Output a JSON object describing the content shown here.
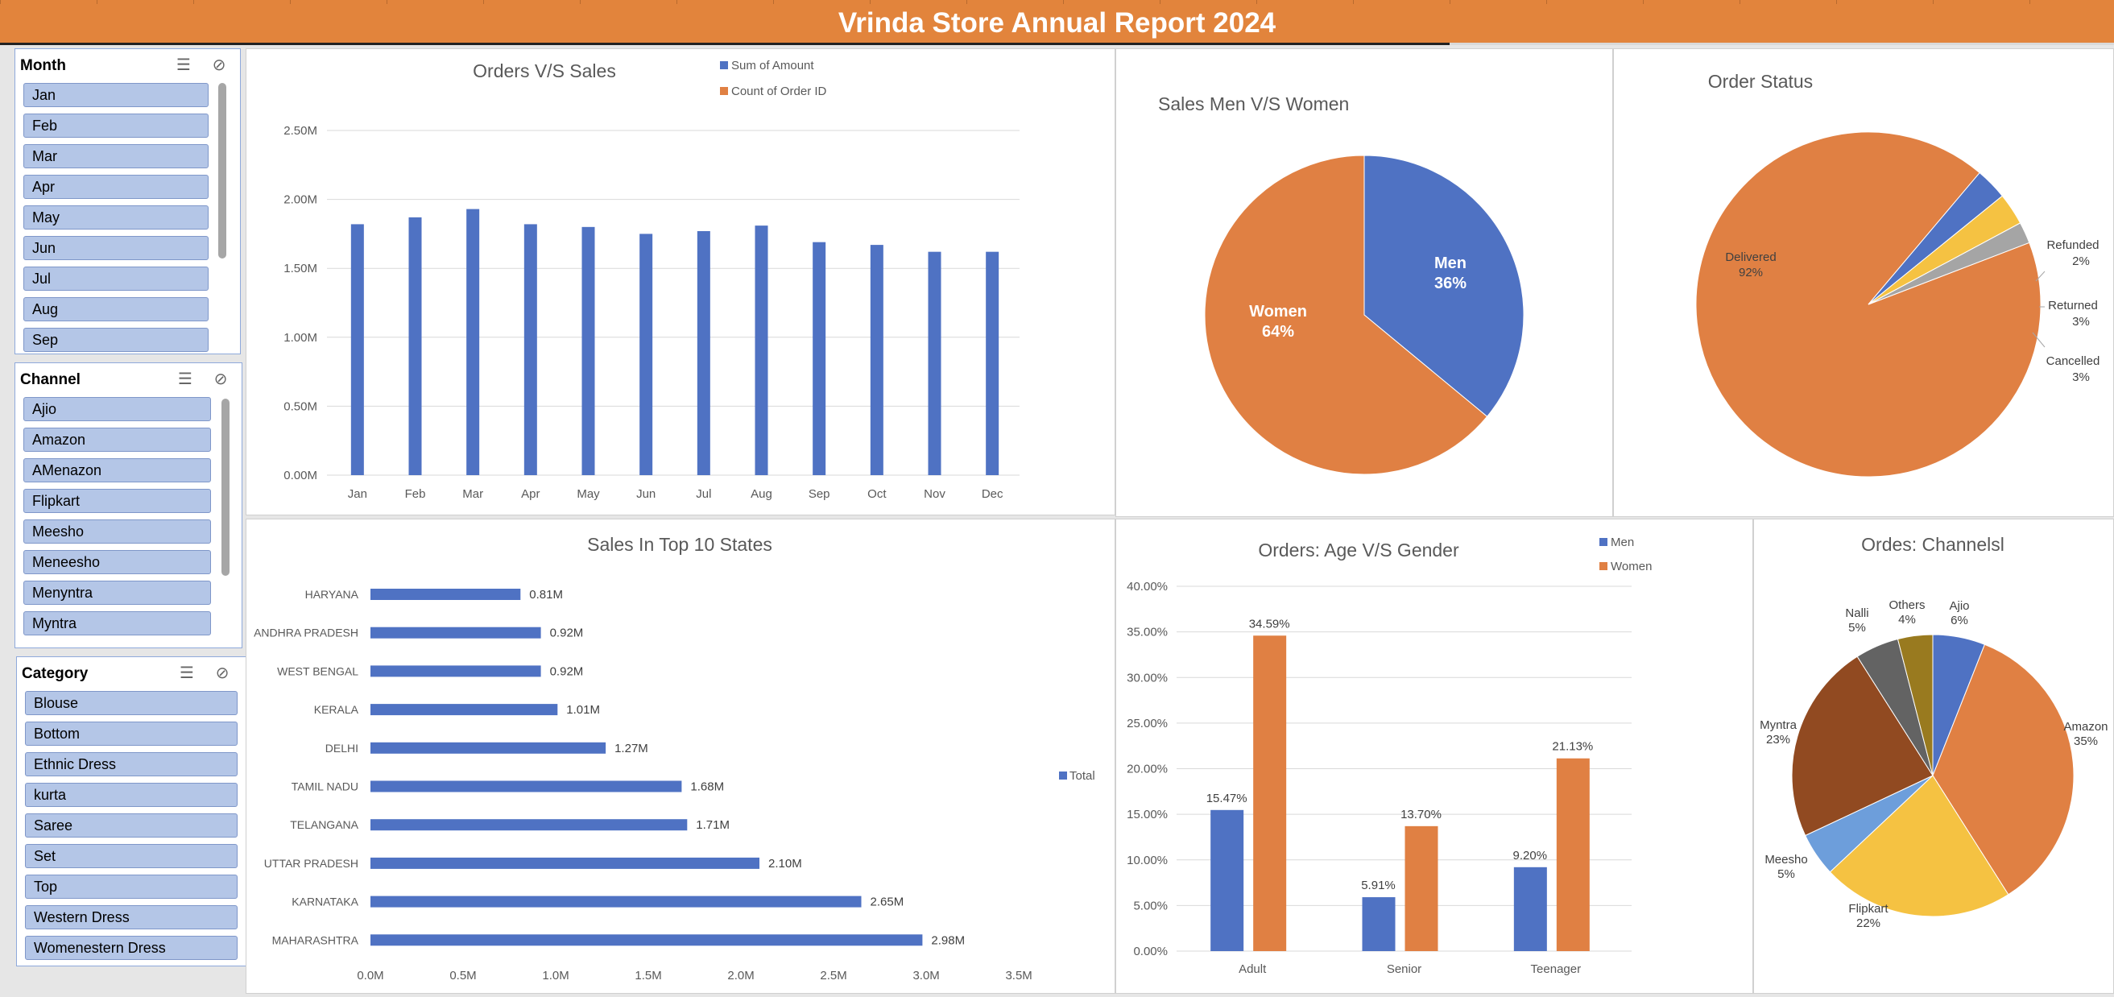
{
  "report": {
    "title": "Vrinda Store Annual Report 2024"
  },
  "slicers": {
    "month": {
      "title": "Month",
      "items": [
        "Jan",
        "Feb",
        "Mar",
        "Apr",
        "May",
        "Jun",
        "Jul",
        "Aug",
        "Sep"
      ]
    },
    "channel": {
      "title": "Channel",
      "items": [
        "Ajio",
        "Amazon",
        "AMenazon",
        "Flipkart",
        "Meesho",
        "Meneesho",
        "Menyntra",
        "Myntra"
      ]
    },
    "category": {
      "title": "Category",
      "items": [
        "Blouse",
        "Bottom",
        "Ethnic Dress",
        "kurta",
        "Saree",
        "Set",
        "Top",
        "Western Dress",
        "Womenestern Dress"
      ]
    }
  },
  "icons": {
    "multiselect": "multi-select-icon",
    "clearfilter": "clear-filter-icon"
  },
  "colors": {
    "blue": "#4f72c3",
    "orange": "#e08043",
    "gray": "#a5a5a5",
    "yellow": "#f5c242",
    "brown": "#914a21",
    "lightblue": "#6d9edb",
    "darkgray": "#636363",
    "olive": "#997a1f"
  },
  "chart_data": [
    {
      "id": "orders-vs-sales",
      "type": "bar",
      "title": "Orders V/S Sales",
      "legend": [
        "Sum of Amount",
        "Count of Order ID"
      ],
      "categories": [
        "Jan",
        "Feb",
        "Mar",
        "Apr",
        "May",
        "Jun",
        "Jul",
        "Aug",
        "Sep",
        "Oct",
        "Nov",
        "Dec"
      ],
      "series": [
        {
          "name": "Sum of Amount",
          "values": [
            1.82,
            1.87,
            1.93,
            1.82,
            1.8,
            1.75,
            1.77,
            1.81,
            1.69,
            1.67,
            1.62,
            1.62
          ]
        }
      ],
      "yticks": [
        "0.00M",
        "0.50M",
        "1.00M",
        "1.50M",
        "2.00M",
        "2.50M"
      ],
      "ylim": [
        0,
        2.5
      ]
    },
    {
      "id": "sales-men-women",
      "type": "pie",
      "title": "Sales Men V/S Women",
      "slices": [
        {
          "label": "Men",
          "pct_label": "36%",
          "value": 36
        },
        {
          "label": "Women",
          "pct_label": "64%",
          "value": 64
        }
      ]
    },
    {
      "id": "order-status",
      "type": "pie",
      "title": "Order Status",
      "slices": [
        {
          "label": "Delivered",
          "pct_label": "92%",
          "value": 92
        },
        {
          "label": "Refunded",
          "pct_label": "2%",
          "value": 2
        },
        {
          "label": "Returned",
          "pct_label": "3%",
          "value": 3
        },
        {
          "label": "Cancelled",
          "pct_label": "3%",
          "value": 3
        }
      ]
    },
    {
      "id": "top-states",
      "type": "bar",
      "orientation": "horizontal",
      "title": "Sales In Top 10 States",
      "legend": [
        "Total"
      ],
      "categories": [
        "HARYANA",
        "ANDHRA PRADESH",
        "WEST BENGAL",
        "KERALA",
        "DELHI",
        "TAMIL NADU",
        "TELANGANA",
        "UTTAR PRADESH",
        "KARNATAKA",
        "MAHARASHTRA"
      ],
      "values": [
        0.81,
        0.92,
        0.92,
        1.01,
        1.27,
        1.68,
        1.71,
        2.1,
        2.65,
        2.98
      ],
      "value_labels": [
        "0.81M",
        "0.92M",
        "0.92M",
        "1.01M",
        "1.27M",
        "1.68M",
        "1.71M",
        "2.10M",
        "2.65M",
        "2.98M"
      ],
      "xticks": [
        "0.0M",
        "0.5M",
        "1.0M",
        "1.5M",
        "2.0M",
        "2.5M",
        "3.0M",
        "3.5M"
      ],
      "xlim": [
        0,
        3.5
      ]
    },
    {
      "id": "age-gender",
      "type": "bar",
      "title": "Orders: Age V/S Gender",
      "legend": [
        "Men",
        "Women"
      ],
      "categories": [
        "Adult",
        "Senior",
        "Teenager"
      ],
      "series": [
        {
          "name": "Men",
          "values": [
            15.47,
            5.91,
            9.2
          ],
          "labels": [
            "15.47%",
            "5.91%",
            "9.20%"
          ]
        },
        {
          "name": "Women",
          "values": [
            34.59,
            13.7,
            21.13
          ],
          "labels": [
            "34.59%",
            "13.70%",
            "21.13%"
          ]
        }
      ],
      "yticks": [
        "0.00%",
        "5.00%",
        "10.00%",
        "15.00%",
        "20.00%",
        "25.00%",
        "30.00%",
        "35.00%",
        "40.00%"
      ],
      "ylim": [
        0,
        40
      ]
    },
    {
      "id": "channels",
      "type": "pie",
      "title": "Ordes: Channelsl",
      "slices": [
        {
          "label": "Ajio",
          "pct_label": "6%",
          "value": 6
        },
        {
          "label": "Amazon",
          "pct_label": "35%",
          "value": 35
        },
        {
          "label": "Flipkart",
          "pct_label": "22%",
          "value": 22
        },
        {
          "label": "Meesho",
          "pct_label": "5%",
          "value": 5
        },
        {
          "label": "Myntra",
          "pct_label": "23%",
          "value": 23
        },
        {
          "label": "Nalli",
          "pct_label": "5%",
          "value": 5
        },
        {
          "label": "Others",
          "pct_label": "4%",
          "value": 4
        }
      ]
    }
  ]
}
